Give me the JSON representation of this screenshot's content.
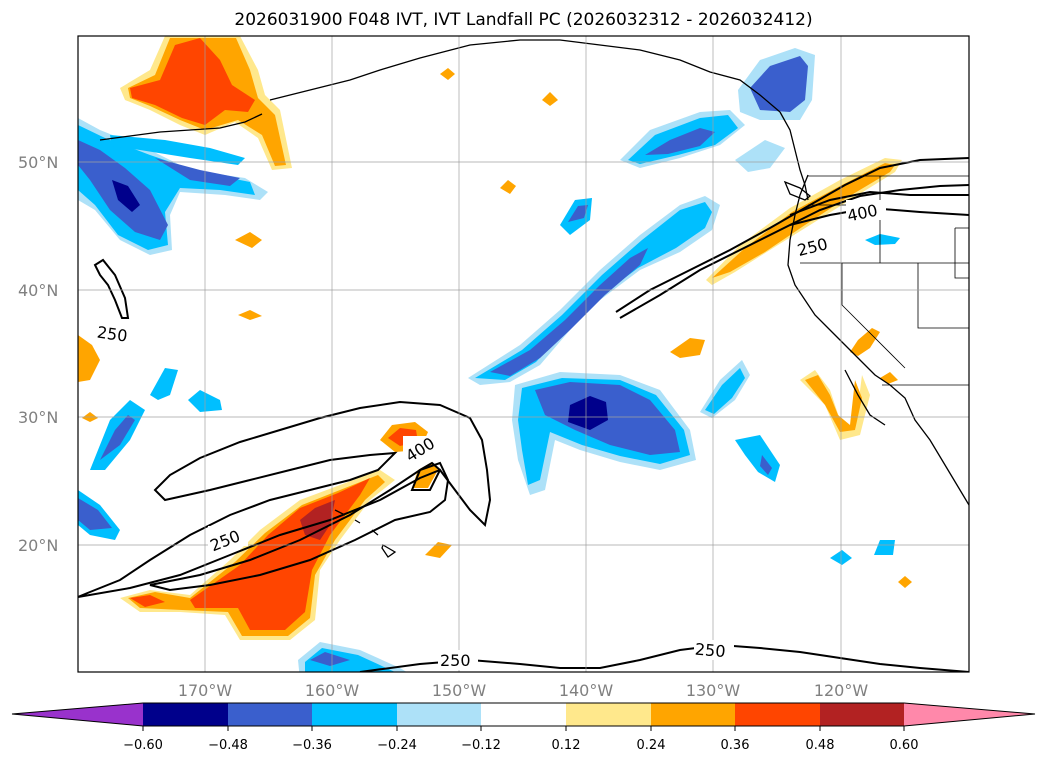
{
  "title": "2026031900 F048 IVT, IVT Landfall PC (2026032312 - 2026032412)",
  "map": {
    "lat_labels": [
      "50°N",
      "40°N",
      "30°N",
      "20°N"
    ],
    "lon_labels": [
      "170°W",
      "160°W",
      "150°W",
      "140°W",
      "130°W",
      "120°W"
    ],
    "contour_labels": [
      "250",
      "400",
      "250",
      "400",
      "250",
      "250",
      "250"
    ]
  },
  "colorbar": {
    "ticks": [
      "−0.60",
      "−0.48",
      "−0.36",
      "−0.24",
      "−0.12",
      "0.12",
      "0.24",
      "0.36",
      "0.48",
      "0.60"
    ],
    "colors": [
      "#9932CC",
      "#00008B",
      "#3A5FCD",
      "#00BFFF",
      "#ADE1F8",
      "#FFFFFF",
      "#FFE88C",
      "#FFA500",
      "#FF4500",
      "#B22222",
      "#FF88AA"
    ]
  }
}
